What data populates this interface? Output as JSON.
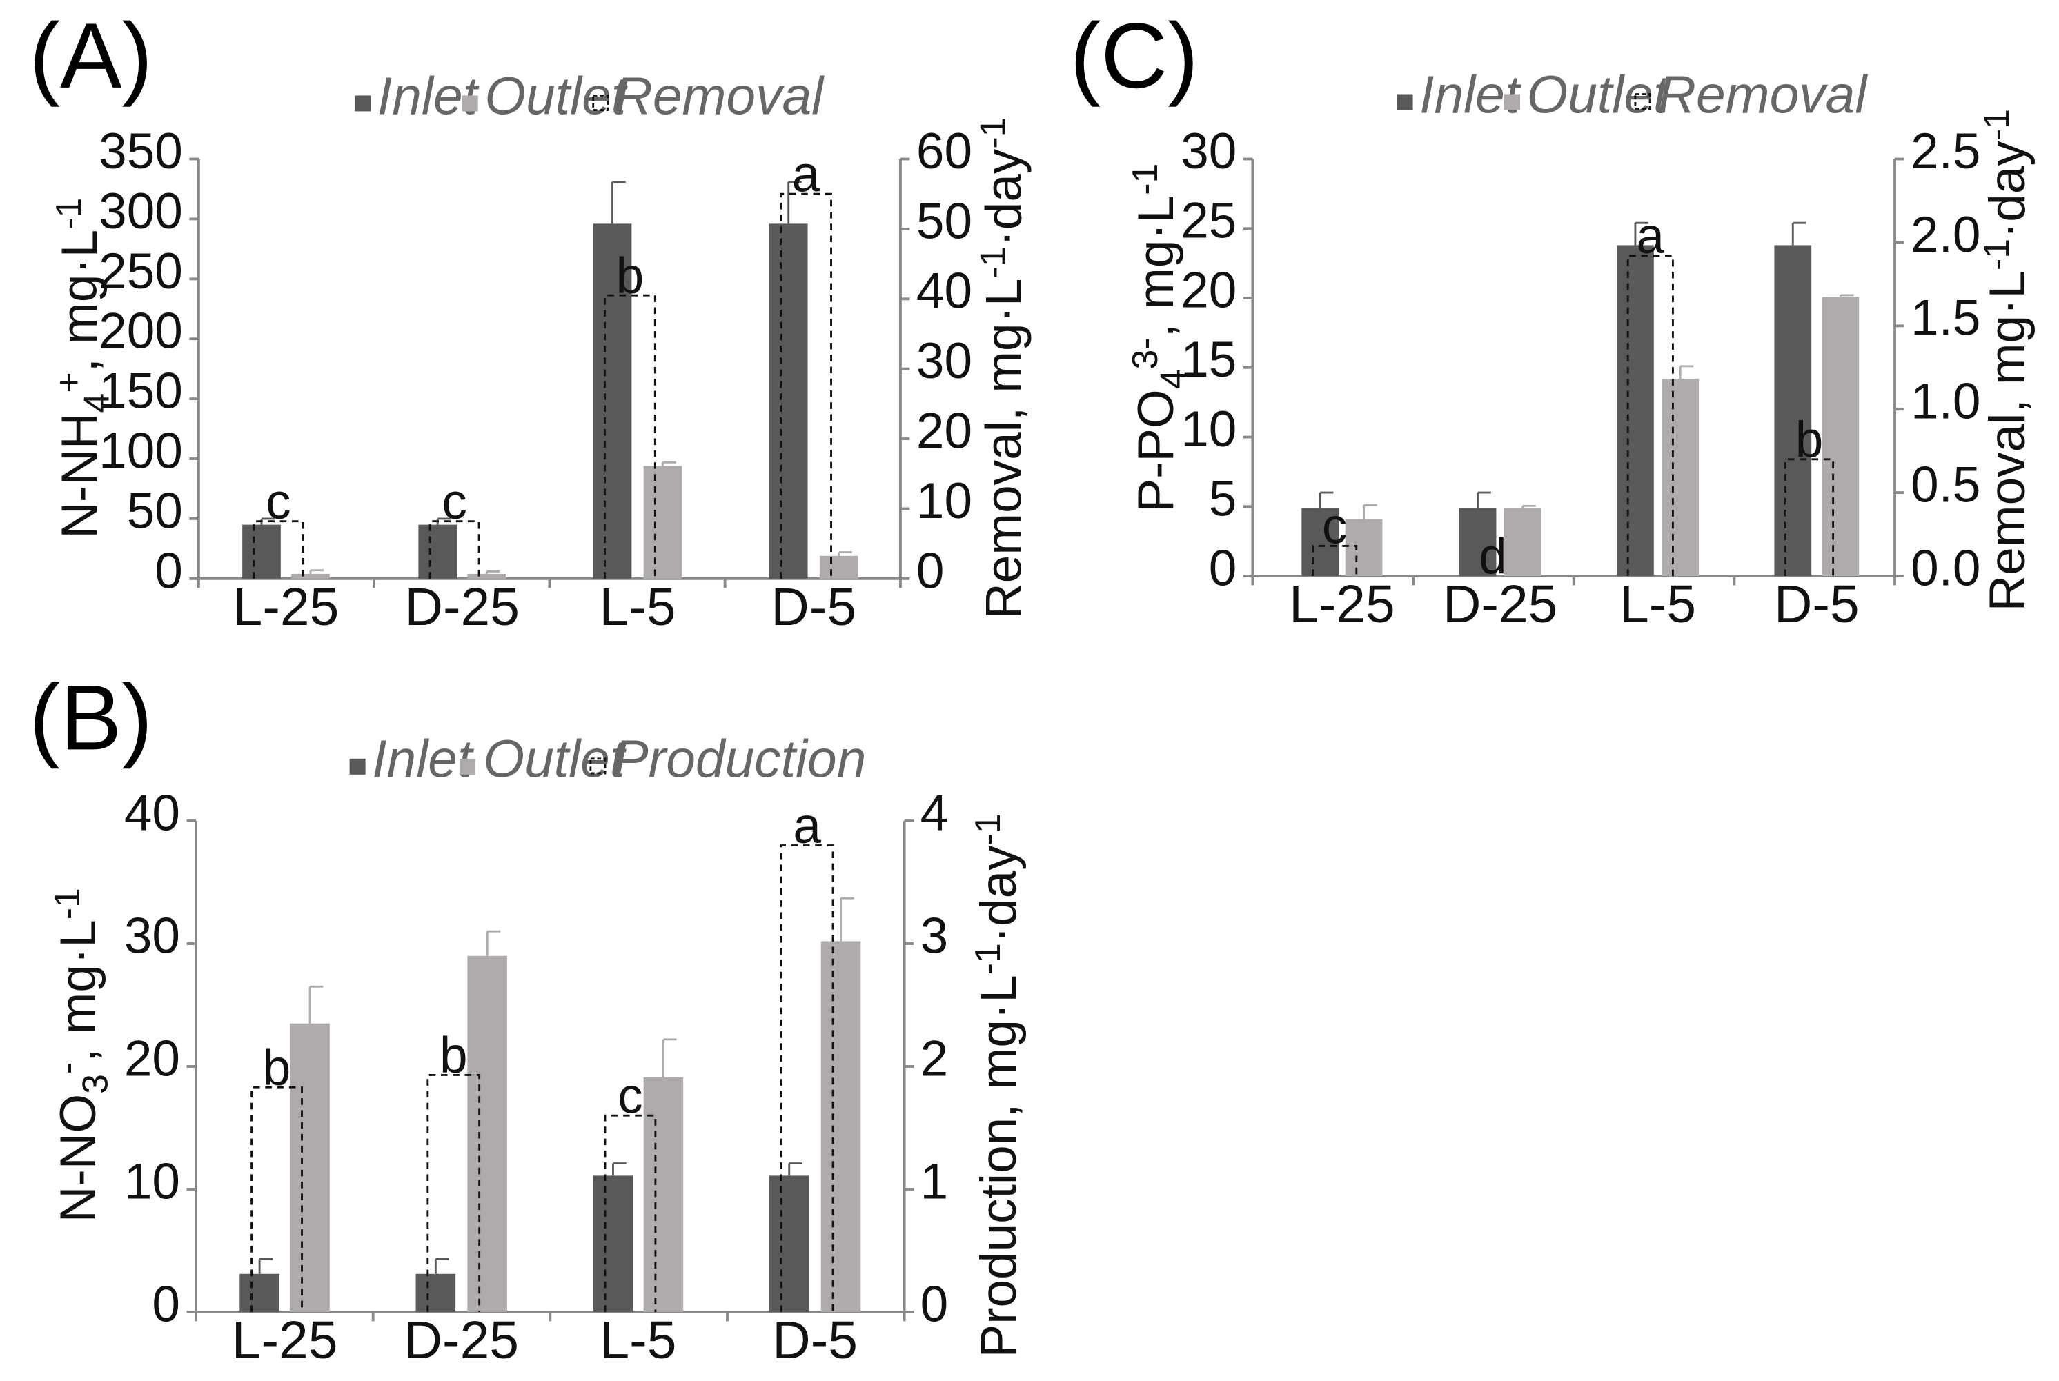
{
  "colors": {
    "inlet": "#595959",
    "outlet": "#afabab",
    "axis": "#888888",
    "text": "#111111",
    "legend_text": "#666666"
  },
  "chart_data": [
    {
      "id": "A",
      "type": "bar",
      "panel_label": "(A)",
      "categories": [
        "L-25",
        "D-25",
        "L-5",
        "D-5"
      ],
      "legend": [
        "Inlet",
        "Outlet",
        "Removal"
      ],
      "ylabel_left": "N-NH4+, mg·L-1",
      "ylabel_right": "Removal, mg·L-1·day-1",
      "ylim_left": [
        0,
        350
      ],
      "yticks_left": [
        0,
        50,
        100,
        150,
        200,
        250,
        300,
        350
      ],
      "ylim_right": [
        0,
        60
      ],
      "yticks_right": [
        0,
        10,
        20,
        30,
        40,
        50,
        60
      ],
      "series": [
        {
          "name": "Inlet",
          "values": [
            45,
            45,
            296,
            296
          ],
          "errors": [
            5,
            5,
            35,
            35
          ]
        },
        {
          "name": "Outlet",
          "values": [
            4,
            4,
            94,
            19
          ],
          "errors": [
            3,
            2,
            3,
            3
          ]
        }
      ],
      "line_series": {
        "name": "Removal",
        "values": [
          8.2,
          8.2,
          40.5,
          55
        ],
        "letters": [
          "c",
          "c",
          "b",
          "a"
        ]
      }
    },
    {
      "id": "B",
      "type": "bar",
      "panel_label": "(B)",
      "categories": [
        "L-25",
        "D-25",
        "L-5",
        "D-5"
      ],
      "legend": [
        "Inlet",
        "Outlet",
        "Production"
      ],
      "ylabel_left": "N-NO3-, mg·L-1",
      "ylabel_right": "Production, mg·L-1·day-1",
      "ylim_left": [
        0,
        40
      ],
      "yticks_left": [
        0,
        10,
        20,
        30,
        40
      ],
      "ylim_right": [
        0,
        4
      ],
      "yticks_right": [
        0,
        1,
        2,
        3,
        4
      ],
      "series": [
        {
          "name": "Inlet",
          "values": [
            3.1,
            3.1,
            11.1,
            11.1
          ],
          "errors": [
            1.2,
            1.2,
            1.0,
            1.0
          ]
        },
        {
          "name": "Outlet",
          "values": [
            23.5,
            29,
            19.1,
            30.2
          ],
          "errors": [
            3.0,
            2.0,
            3.1,
            3.5
          ]
        }
      ],
      "line_series": {
        "name": "Production",
        "values": [
          1.83,
          1.93,
          1.6,
          3.8
        ],
        "letters": [
          "b",
          "b",
          "c",
          "a"
        ]
      }
    },
    {
      "id": "C",
      "type": "bar",
      "panel_label": "(C)",
      "categories": [
        "L-25",
        "D-25",
        "L-5",
        "D-5"
      ],
      "legend": [
        "Inlet",
        "Outlet",
        "Removal"
      ],
      "ylabel_left": "P-PO43-, mg·L-1",
      "ylabel_right": "Removal, mg·L-1·day-1",
      "ylim_left": [
        0,
        30
      ],
      "yticks_left": [
        0,
        5,
        10,
        15,
        20,
        25,
        30
      ],
      "yticks_left_labels": [
        "0",
        "5",
        "10",
        "15",
        "20",
        "25",
        "30"
      ],
      "ylim_right": [
        0,
        2.5
      ],
      "yticks_right": [
        0,
        0.5,
        1,
        1.5,
        2,
        2.5
      ],
      "yticks_right_labels": [
        "0.0",
        "0.5",
        "1.0",
        "1.5",
        "2.0",
        "2.5"
      ],
      "series": [
        {
          "name": "Inlet",
          "values": [
            4.9,
            4.9,
            23.8,
            23.8
          ],
          "errors": [
            1.1,
            1.1,
            1.6,
            1.6
          ]
        },
        {
          "name": "Outlet",
          "values": [
            4.1,
            4.9,
            14.2,
            20.1
          ],
          "errors": [
            1.0,
            0.15,
            0.9,
            0.1
          ]
        }
      ],
      "line_series": {
        "name": "Removal",
        "values": [
          0.18,
          0,
          1.92,
          0.7
        ],
        "letters": [
          "c",
          "d",
          "a",
          "b"
        ]
      }
    }
  ]
}
